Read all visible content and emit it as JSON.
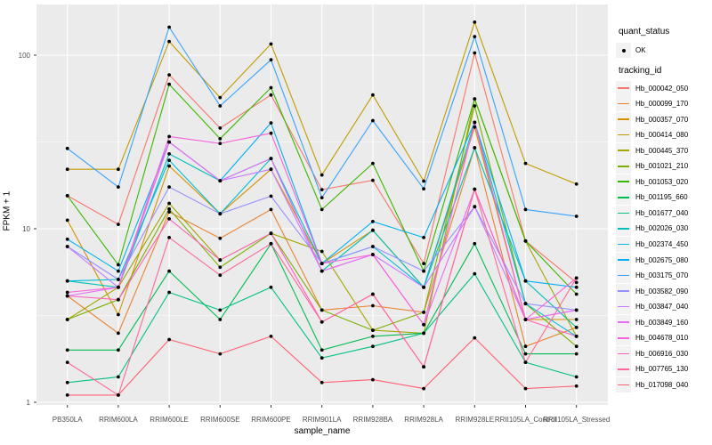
{
  "figure": {
    "background": "#FFFFFF",
    "panel_background": "#EBEBEB",
    "grid_color": "#FFFFFF",
    "tick_color": "#333333",
    "tick_label_color": "#4D4D4D",
    "point_color": "#000000",
    "legend_key_background": "#F2F2F2"
  },
  "axes": {
    "x_title": "sample_name",
    "y_title": "FPKM + 1",
    "y_ticks": [
      "1",
      "10",
      "100"
    ]
  },
  "legend": {
    "quant_status": {
      "title": "quant_status",
      "items": [
        {
          "label": "OK",
          "symbol": "filled-point"
        }
      ]
    },
    "tracking_id": {
      "title": "tracking_id"
    }
  },
  "chart_data": {
    "type": "line",
    "title": "",
    "xlabel": "sample_name",
    "ylabel": "FPKM + 1",
    "y_scale": "log10",
    "ylim": [
      1,
      190
    ],
    "y_tick_values": [
      1,
      10,
      100
    ],
    "grid": "major white on grey panel, minor at half-decades",
    "legend_position": "right",
    "point_shape": "small filled black circle on every data point",
    "categories": [
      "PB350LA",
      "RRIM600LA",
      "RRIM600LE",
      "RRIM600SE",
      "RRIM600PE",
      "RRIM901LA",
      "RRIM928BA",
      "RRIM928LA",
      "RRIM928LE",
      "RRII105LA_Control",
      "RRII105LA_Stressed"
    ],
    "series": [
      {
        "name": "Hb_000042_050",
        "color": "#F8766D",
        "values": [
          15.5,
          10.6,
          77,
          38,
          59,
          16.8,
          19,
          6.3,
          103,
          8.5,
          4.9
        ]
      },
      {
        "name": "Hb_000099_170",
        "color": "#EA8331",
        "values": [
          4.1,
          2.5,
          12.5,
          8.8,
          12.9,
          3.4,
          3.6,
          3.3,
          29.3,
          2.1,
          2.7
        ]
      },
      {
        "name": "Hb_000357_070",
        "color": "#D89000",
        "values": [
          11.2,
          3.2,
          23,
          12.2,
          22,
          6.3,
          9.8,
          4.6,
          38.5,
          3.0,
          3.0
        ]
      },
      {
        "name": "Hb_000414_080",
        "color": "#C09B00",
        "values": [
          22,
          22,
          120,
          57,
          116,
          20.4,
          59,
          18.8,
          155,
          23.8,
          18.1
        ]
      },
      {
        "name": "Hb_000445_370",
        "color": "#A3A500",
        "values": [
          3.0,
          4.6,
          14,
          6.6,
          9.4,
          7.4,
          2.6,
          2.5,
          56,
          8.5,
          2.4
        ]
      },
      {
        "name": "Hb_001021_210",
        "color": "#7CAE00",
        "values": [
          3.0,
          3.9,
          13,
          6.0,
          9.4,
          3.4,
          2.6,
          3.3,
          51,
          3.7,
          2.1
        ]
      },
      {
        "name": "Hb_001053_020",
        "color": "#39B600",
        "values": [
          15.5,
          6.2,
          68,
          33,
          65,
          12.9,
          23.8,
          5.7,
          56,
          8.5,
          4.2
        ]
      },
      {
        "name": "Hb_001195_660",
        "color": "#00BB4E",
        "values": [
          2.0,
          2.0,
          5.7,
          3.0,
          8.2,
          2.0,
          2.4,
          2.5,
          8.2,
          1.9,
          1.9
        ]
      },
      {
        "name": "Hb_001677_040",
        "color": "#00C087",
        "values": [
          1.3,
          1.4,
          4.3,
          3.4,
          4.6,
          1.8,
          2.1,
          2.5,
          5.5,
          1.7,
          1.4
        ]
      },
      {
        "name": "Hb_002026_030",
        "color": "#00C0B8",
        "values": [
          5.0,
          4.6,
          27,
          18.9,
          25.4,
          5.7,
          9.8,
          4.6,
          29.3,
          5.0,
          2.7
        ]
      },
      {
        "name": "Hb_002374_450",
        "color": "#00BCD8",
        "values": [
          5.0,
          5.1,
          24.8,
          12.2,
          25.4,
          6.3,
          7.9,
          4.6,
          41,
          3.7,
          2.4
        ]
      },
      {
        "name": "Hb_002675_080",
        "color": "#00B0F6",
        "values": [
          8.7,
          5.7,
          31.6,
          18.9,
          40.7,
          6.3,
          11,
          8.9,
          41,
          5.0,
          4.6
        ]
      },
      {
        "name": "Hb_003175_070",
        "color": "#35A2FF",
        "values": [
          29,
          17.4,
          145,
          51,
          94,
          15.1,
          42,
          17,
          128,
          12.9,
          11.8
        ]
      },
      {
        "name": "Hb_003582_090",
        "color": "#9590FF",
        "values": [
          7.9,
          5.1,
          17.4,
          12.2,
          15.4,
          6.3,
          7.9,
          5.7,
          13.4,
          3.7,
          3.4
        ]
      },
      {
        "name": "Hb_003847_040",
        "color": "#C77CFF",
        "values": [
          7.9,
          4.6,
          31.6,
          18.9,
          22,
          5.7,
          7.1,
          4.6,
          13.4,
          3.0,
          3.4
        ]
      },
      {
        "name": "Hb_003849_160",
        "color": "#E76BF3",
        "values": [
          4.1,
          4.6,
          31.6,
          18.9,
          25.4,
          5.7,
          7.1,
          2.8,
          16.9,
          3.0,
          3.4
        ]
      },
      {
        "name": "Hb_004678_010",
        "color": "#FA62DB",
        "values": [
          4.3,
          4.6,
          34,
          31,
          35.5,
          6.3,
          7.1,
          2.8,
          41,
          3.0,
          5.2
        ]
      },
      {
        "name": "Hb_006916_030",
        "color": "#FF62BC",
        "values": [
          4.1,
          3.9,
          11.4,
          6.6,
          9.4,
          2.9,
          4.2,
          1.6,
          16.9,
          3.0,
          2.4
        ]
      },
      {
        "name": "Hb_007765_130",
        "color": "#FF6A98",
        "values": [
          1.7,
          1.1,
          8.9,
          5.4,
          8.2,
          2.9,
          4.2,
          1.6,
          16.9,
          1.7,
          5.2
        ]
      },
      {
        "name": "Hb_017098_040",
        "color": "#FF6171",
        "values": [
          1.1,
          1.1,
          2.3,
          1.9,
          2.4,
          1.3,
          1.35,
          1.2,
          2.35,
          1.2,
          1.24
        ]
      }
    ]
  }
}
